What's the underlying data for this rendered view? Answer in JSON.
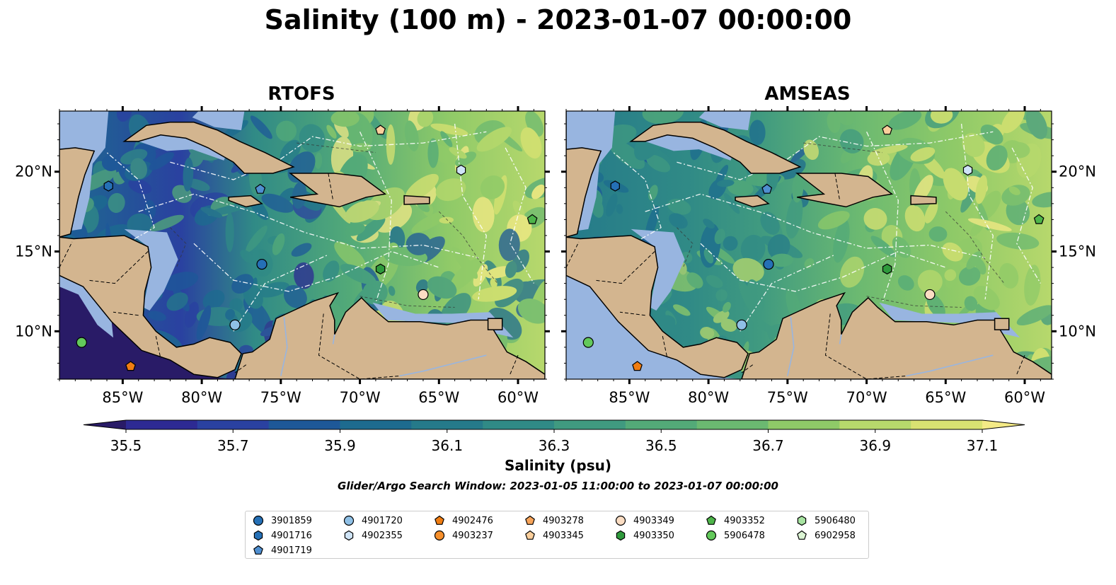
{
  "title": "Salinity (100 m) - 2023-01-07 00:00:00",
  "panels": [
    {
      "name": "RTOFS",
      "palette": "rtofs"
    },
    {
      "name": "AMSEAS",
      "palette": "amseas"
    }
  ],
  "lon_labels": [
    "85°W",
    "80°W",
    "75°W",
    "70°W",
    "65°W",
    "60°W"
  ],
  "lat_labels": [
    "20°N",
    "15°N",
    "10°N"
  ],
  "colorbar": {
    "ticks": [
      "35.5",
      "35.7",
      "35.9",
      "36.1",
      "36.3",
      "36.5",
      "36.7",
      "36.9",
      "37.1"
    ],
    "label": "Salinity (psu)",
    "colors": [
      "#291b67",
      "#2d2a93",
      "#2a41a0",
      "#1e5898",
      "#1d6b8f",
      "#257a8a",
      "#308a86",
      "#409a80",
      "#53aa78",
      "#6bb971",
      "#8fca68",
      "#b7d86c",
      "#d9e272",
      "#f4ea86"
    ]
  },
  "search_window": "Glider/Argo Search Window: 2023-01-05 11:00:00 to 2023-01-07 00:00:00",
  "colors": {
    "land": "#d3b58f",
    "shelf": "#98b5e0"
  },
  "legend": [
    {
      "label": "3901859",
      "marker": "circle",
      "color": "#2570b6"
    },
    {
      "label": "4901716",
      "marker": "hexagon",
      "color": "#2570b6"
    },
    {
      "label": "4901719",
      "marker": "pentagon",
      "color": "#4f8fd0"
    },
    {
      "label": "4901720",
      "marker": "circle",
      "color": "#8fc0e6"
    },
    {
      "label": "4902355",
      "marker": "hexagon",
      "color": "#cfe4f7"
    },
    {
      "label": "4902476",
      "marker": "pentagon",
      "color": "#f07d12"
    },
    {
      "label": "4903237",
      "marker": "circle",
      "color": "#f7902c"
    },
    {
      "label": "4903278",
      "marker": "pentagon",
      "color": "#f7a45a"
    },
    {
      "label": "4903345",
      "marker": "pentagon",
      "color": "#fbcf9c"
    },
    {
      "label": "4903349",
      "marker": "circle",
      "color": "#fbddc3"
    },
    {
      "label": "4903350",
      "marker": "hexagon",
      "color": "#2f9a3c"
    },
    {
      "label": "4903352",
      "marker": "pentagon",
      "color": "#4eb54a"
    },
    {
      "label": "5906478",
      "marker": "circle",
      "color": "#63c95b"
    },
    {
      "label": "5906480",
      "marker": "hexagon",
      "color": "#a7e3a1"
    },
    {
      "label": "6902958",
      "marker": "pentagon",
      "color": "#dcf5d4"
    }
  ],
  "observations": [
    {
      "id": "4901716",
      "lon": -85.9,
      "lat": 19.1
    },
    {
      "id": "4901719",
      "lon": -76.3,
      "lat": 18.9
    },
    {
      "id": "4903345",
      "lon": -68.7,
      "lat": 22.6
    },
    {
      "id": "4902355",
      "lon": -63.6,
      "lat": 20.1
    },
    {
      "id": "4903352",
      "lon": -59.1,
      "lat": 17.0
    },
    {
      "id": "3901859",
      "lon": -76.2,
      "lat": 14.2
    },
    {
      "id": "4903350",
      "lon": -68.7,
      "lat": 13.9
    },
    {
      "id": "4903349",
      "lon": -66.0,
      "lat": 12.3
    },
    {
      "id": "4901720",
      "lon": -77.9,
      "lat": 10.4
    },
    {
      "id": "5906478",
      "lon": -87.6,
      "lat": 9.3
    },
    {
      "id": "4902476",
      "lon": -84.5,
      "lat": 7.8
    }
  ]
}
